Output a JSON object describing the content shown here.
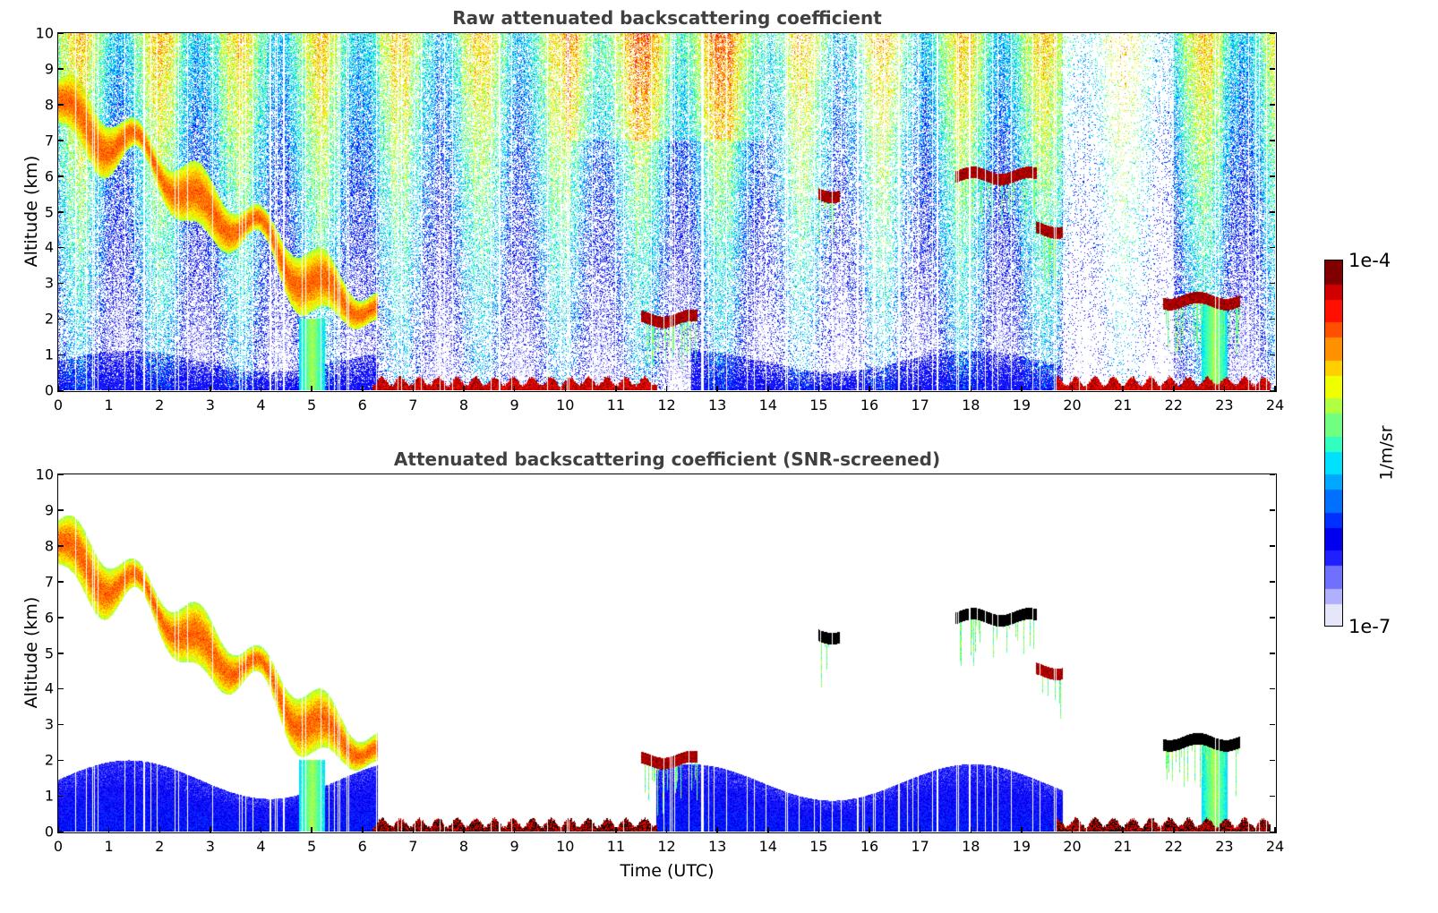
{
  "chart_data": [
    {
      "type": "heatmap",
      "title": "Raw attenuated backscattering coefficient",
      "xlabel": "",
      "ylabel": "Altitude (km)",
      "xlim": [
        0,
        24
      ],
      "ylim": [
        0,
        10
      ],
      "xticks": [
        "0",
        "1",
        "2",
        "3",
        "4",
        "5",
        "6",
        "7",
        "8",
        "9",
        "10",
        "11",
        "12",
        "13",
        "14",
        "15",
        "16",
        "17",
        "18",
        "19",
        "20",
        "21",
        "22",
        "23",
        "24"
      ],
      "yticks": [
        "0",
        "1",
        "2",
        "3",
        "4",
        "5",
        "6",
        "7",
        "8",
        "9",
        "10"
      ],
      "screened": false,
      "features": {
        "background_noise": "speckled blue-cyan-green noise increasing with altitude, sparse from ~14 to ~22 UTC",
        "boundary_layer": [
          {
            "t_start": 0,
            "t_end": 6.3,
            "top_km": 1.0,
            "level": "blue"
          },
          {
            "t_start": 12.5,
            "t_end": 19.8,
            "top_km": 1.0,
            "level": "blue"
          }
        ],
        "surface_aerosol_layer": [
          {
            "t_start": 6.2,
            "t_end": 11.8,
            "height_km": 0.2,
            "level": "dark-red"
          },
          {
            "t_start": 19.7,
            "t_end": 23.9,
            "height_km": 0.2,
            "level": "red"
          }
        ],
        "cirrus_descending": {
          "t_start": 0,
          "t_end": 6.3,
          "top_start_km": 8.7,
          "top_end_km": 2.5,
          "level": "yellow-orange"
        },
        "cloud_layers": [
          {
            "t_start": 17.7,
            "t_end": 19.3,
            "height_km": 6.0,
            "level": "dark-red"
          },
          {
            "t_start": 19.3,
            "t_end": 19.8,
            "height_km": 4.5,
            "level": "red"
          },
          {
            "t_start": 11.5,
            "t_end": 12.6,
            "height_km": 2.0,
            "level": "red"
          },
          {
            "t_start": 21.8,
            "t_end": 23.3,
            "height_km": 2.5,
            "level": "dark-red"
          },
          {
            "t_start": 15.0,
            "t_end": 15.4,
            "height_km": 5.5,
            "level": "dark-red"
          }
        ],
        "precipitation_streaks": [
          {
            "t": 5.0,
            "from_km": 2.0,
            "to_km": 0,
            "level": "cyan"
          },
          {
            "t": 22.8,
            "from_km": 2.4,
            "to_km": 0,
            "level": "yellow-cyan"
          }
        ]
      }
    },
    {
      "type": "heatmap",
      "title": "Attenuated backscattering coefficient (SNR-screened)",
      "xlabel": "Time (UTC)",
      "ylabel": "Altitude (km)",
      "xlim": [
        0,
        24
      ],
      "ylim": [
        0,
        10
      ],
      "xticks": [
        "0",
        "1",
        "2",
        "3",
        "4",
        "5",
        "6",
        "7",
        "8",
        "9",
        "10",
        "11",
        "12",
        "13",
        "14",
        "15",
        "16",
        "17",
        "18",
        "19",
        "20",
        "21",
        "22",
        "23",
        "24"
      ],
      "yticks": [
        "0",
        "1",
        "2",
        "3",
        "4",
        "5",
        "6",
        "7",
        "8",
        "9",
        "10"
      ],
      "screened": true,
      "features": {
        "background_noise": "removed (white)",
        "boundary_layer": [
          {
            "t_start": 0,
            "t_end": 6.3,
            "top_km": 1.8,
            "level": "blue-lavender"
          },
          {
            "t_start": 11.8,
            "t_end": 19.8,
            "top_km": 1.7,
            "level": "blue"
          }
        ],
        "surface_aerosol_layer": [
          {
            "t_start": 6.2,
            "t_end": 11.8,
            "height_km": 0.2,
            "level": "black-red"
          },
          {
            "t_start": 19.7,
            "t_end": 23.9,
            "height_km": 0.2,
            "level": "black-red"
          }
        ],
        "cirrus_descending": {
          "t_start": 0,
          "t_end": 6.3,
          "top_start_km": 8.7,
          "top_end_km": 2.5,
          "level": "yellow-green"
        },
        "cloud_layers": [
          {
            "t_start": 17.7,
            "t_end": 19.3,
            "height_km": 6.0,
            "level": "black"
          },
          {
            "t_start": 19.3,
            "t_end": 19.8,
            "height_km": 4.5,
            "level": "red"
          },
          {
            "t_start": 11.5,
            "t_end": 12.6,
            "height_km": 2.0,
            "level": "red"
          },
          {
            "t_start": 21.8,
            "t_end": 23.3,
            "height_km": 2.5,
            "level": "black"
          },
          {
            "t_start": 15.0,
            "t_end": 15.4,
            "height_km": 5.5,
            "level": "black"
          }
        ],
        "precipitation_streaks": [
          {
            "t": 5.0,
            "from_km": 2.0,
            "to_km": 0,
            "level": "cyan"
          },
          {
            "t": 22.8,
            "from_km": 2.4,
            "to_km": 0,
            "level": "yellow-cyan"
          }
        ]
      }
    }
  ],
  "colorbar": {
    "label": "1/m/sr",
    "max_label": "1e-4",
    "min_label": "1e-7",
    "scale": "log",
    "range": [
      1e-07,
      0.0001
    ],
    "colormap": [
      "#e6e6fa",
      "#b0b0ff",
      "#7070ff",
      "#2020ff",
      "#0000ee",
      "#0030ff",
      "#0070ff",
      "#00a8ff",
      "#00e0ff",
      "#30ffc0",
      "#70ff80",
      "#b0ff40",
      "#f0ff00",
      "#ffd000",
      "#ff9000",
      "#ff5000",
      "#ff1000",
      "#d00000",
      "#800000"
    ]
  }
}
